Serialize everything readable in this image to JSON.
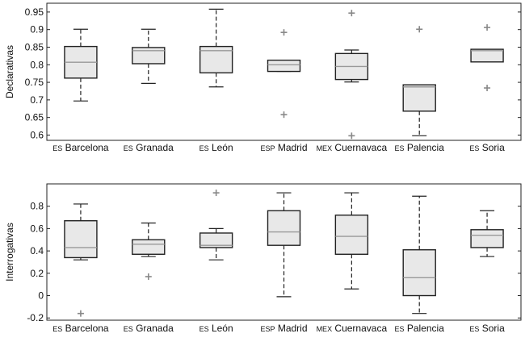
{
  "colors": {
    "box_fill": "#e8e8e8",
    "box_edge": "#222222",
    "median": "#999999",
    "outlier": "#888888",
    "axis": "#222222"
  },
  "chart_data": [
    {
      "type": "boxplot",
      "ylabel": "Declarativas",
      "ylim": [
        0.585,
        0.975
      ],
      "yticks": [
        "0.6",
        "0.65",
        "0.7",
        "0.75",
        "0.8",
        "0.85",
        "0.9",
        "0.95"
      ],
      "categories": [
        {
          "prefix": "ES",
          "name": "Barcelona"
        },
        {
          "prefix": "ES",
          "name": "Granada"
        },
        {
          "prefix": "ES",
          "name": "León"
        },
        {
          "prefix": "ESP",
          "name": "Madrid"
        },
        {
          "prefix": "MEX",
          "name": "Cuernavaca"
        },
        {
          "prefix": "ES",
          "name": "Palencia"
        },
        {
          "prefix": "ES",
          "name": "Soria"
        }
      ],
      "boxes": [
        {
          "whisker_low": 0.697,
          "q1": 0.762,
          "median": 0.807,
          "q3": 0.852,
          "whisker_high": 0.901,
          "outliers": []
        },
        {
          "whisker_low": 0.747,
          "q1": 0.803,
          "median": 0.84,
          "q3": 0.849,
          "whisker_high": 0.901,
          "outliers": []
        },
        {
          "whisker_low": 0.737,
          "q1": 0.777,
          "median": 0.84,
          "q3": 0.852,
          "whisker_high": 0.958,
          "outliers": []
        },
        {
          "whisker_low": 0.781,
          "q1": 0.781,
          "median": 0.8,
          "q3": 0.813,
          "whisker_high": 0.813,
          "outliers": [
            0.658,
            0.892
          ]
        },
        {
          "whisker_low": 0.751,
          "q1": 0.758,
          "median": 0.795,
          "q3": 0.832,
          "whisker_high": 0.842,
          "outliers": [
            0.598,
            0.947
          ]
        },
        {
          "whisker_low": 0.598,
          "q1": 0.668,
          "median": 0.737,
          "q3": 0.743,
          "whisker_high": 0.743,
          "outliers": [
            0.901
          ]
        },
        {
          "whisker_low": 0.808,
          "q1": 0.808,
          "median": 0.84,
          "q3": 0.844,
          "whisker_high": 0.844,
          "outliers": [
            0.734,
            0.906
          ]
        }
      ]
    },
    {
      "type": "boxplot",
      "ylabel": "Interrogativas",
      "ylim": [
        -0.22,
        1.0
      ],
      "yticks": [
        "-0.2",
        "0",
        "0.2",
        "0.4",
        "0.6",
        "0.8"
      ],
      "categories": [
        {
          "prefix": "ES",
          "name": "Barcelona"
        },
        {
          "prefix": "ES",
          "name": "Granada"
        },
        {
          "prefix": "ES",
          "name": "León"
        },
        {
          "prefix": "ESP",
          "name": "Madrid"
        },
        {
          "prefix": "MEX",
          "name": "Cuernavaca"
        },
        {
          "prefix": "ES",
          "name": "Palencia"
        },
        {
          "prefix": "ES",
          "name": "Soria"
        }
      ],
      "boxes": [
        {
          "whisker_low": 0.32,
          "q1": 0.34,
          "median": 0.43,
          "q3": 0.67,
          "whisker_high": 0.82,
          "outliers": [
            -0.16
          ]
        },
        {
          "whisker_low": 0.35,
          "q1": 0.37,
          "median": 0.46,
          "q3": 0.5,
          "whisker_high": 0.65,
          "outliers": [
            0.17
          ]
        },
        {
          "whisker_low": 0.32,
          "q1": 0.43,
          "median": 0.45,
          "q3": 0.56,
          "whisker_high": 0.6,
          "outliers": [
            0.92
          ]
        },
        {
          "whisker_low": -0.01,
          "q1": 0.45,
          "median": 0.57,
          "q3": 0.76,
          "whisker_high": 0.92,
          "outliers": []
        },
        {
          "whisker_low": 0.06,
          "q1": 0.37,
          "median": 0.53,
          "q3": 0.72,
          "whisker_high": 0.92,
          "outliers": []
        },
        {
          "whisker_low": -0.16,
          "q1": 0.0,
          "median": 0.16,
          "q3": 0.41,
          "whisker_high": 0.89,
          "outliers": []
        },
        {
          "whisker_low": 0.35,
          "q1": 0.43,
          "median": 0.54,
          "q3": 0.59,
          "whisker_high": 0.76,
          "outliers": []
        }
      ]
    }
  ]
}
